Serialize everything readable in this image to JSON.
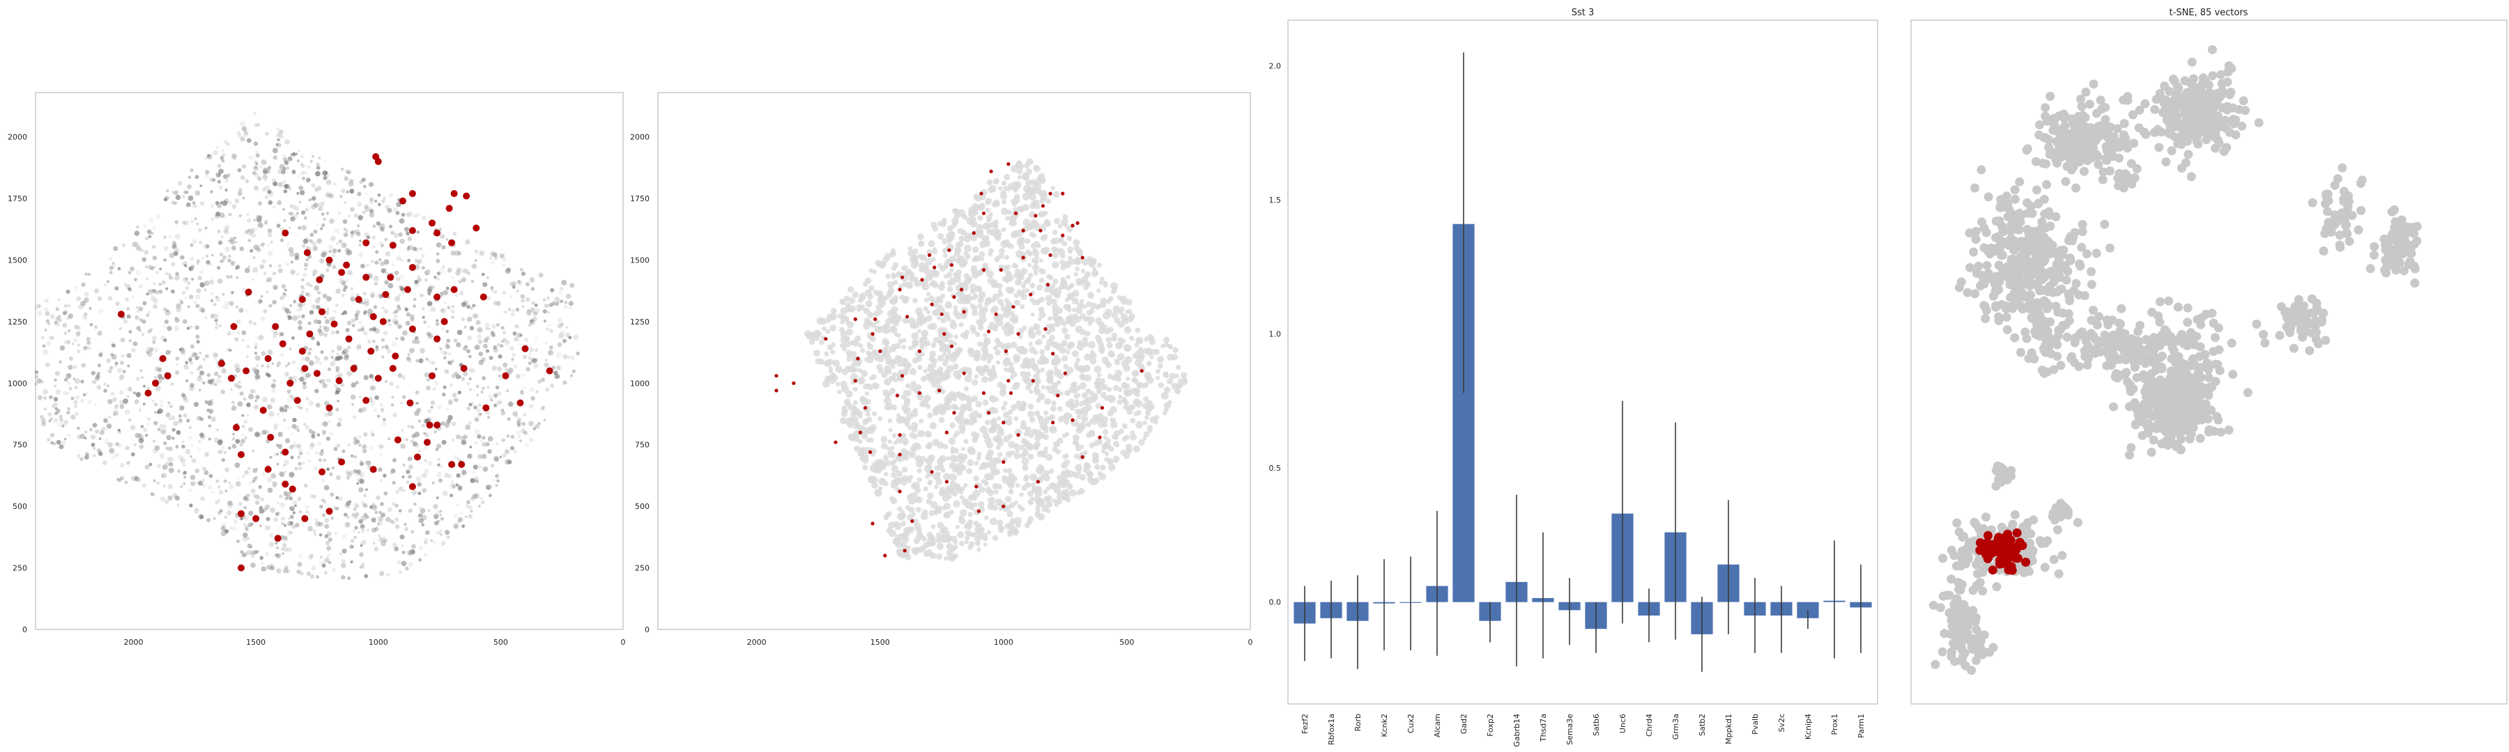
{
  "chart_data": [
    {
      "type": "scatter",
      "title": "",
      "xlabel": "",
      "ylabel": "",
      "xlim": [
        2400,
        0
      ],
      "ylim": [
        2180,
        0
      ],
      "xticks": [
        "2000",
        "1500",
        "1000",
        "500",
        "0"
      ],
      "yticks": [
        "0",
        "250",
        "500",
        "750",
        "1000",
        "1250",
        "1500",
        "1750",
        "2000"
      ],
      "grid": false,
      "background_color": "#b0b0b0",
      "highlight_color": "#b40000",
      "highlight_points": [
        [
          1560,
          250
        ],
        [
          1410,
          370
        ],
        [
          1500,
          450
        ],
        [
          1560,
          470
        ],
        [
          1300,
          450
        ],
        [
          1200,
          480
        ],
        [
          1380,
          590
        ],
        [
          1350,
          570
        ],
        [
          1450,
          650
        ],
        [
          1230,
          640
        ],
        [
          1150,
          680
        ],
        [
          1020,
          650
        ],
        [
          1380,
          720
        ],
        [
          860,
          580
        ],
        [
          840,
          700
        ],
        [
          700,
          670
        ],
        [
          660,
          670
        ],
        [
          1560,
          710
        ],
        [
          1580,
          820
        ],
        [
          1440,
          780
        ],
        [
          920,
          770
        ],
        [
          800,
          760
        ],
        [
          790,
          830
        ],
        [
          760,
          830
        ],
        [
          1470,
          890
        ],
        [
          1330,
          930
        ],
        [
          1200,
          900
        ],
        [
          1050,
          930
        ],
        [
          870,
          920
        ],
        [
          560,
          900
        ],
        [
          420,
          920
        ],
        [
          1940,
          960
        ],
        [
          1910,
          1000
        ],
        [
          1860,
          1030
        ],
        [
          1600,
          1020
        ],
        [
          1540,
          1050
        ],
        [
          1360,
          1000
        ],
        [
          1300,
          1060
        ],
        [
          1250,
          1040
        ],
        [
          1160,
          1010
        ],
        [
          1100,
          1060
        ],
        [
          1000,
          1020
        ],
        [
          940,
          1060
        ],
        [
          780,
          1030
        ],
        [
          650,
          1060
        ],
        [
          480,
          1030
        ],
        [
          300,
          1050
        ],
        [
          1880,
          1100
        ],
        [
          1640,
          1080
        ],
        [
          1450,
          1100
        ],
        [
          1390,
          1160
        ],
        [
          1310,
          1130
        ],
        [
          1030,
          1130
        ],
        [
          930,
          1110
        ],
        [
          760,
          1180
        ],
        [
          400,
          1140
        ],
        [
          1590,
          1230
        ],
        [
          1420,
          1230
        ],
        [
          1280,
          1200
        ],
        [
          1180,
          1240
        ],
        [
          1120,
          1180
        ],
        [
          1020,
          1270
        ],
        [
          980,
          1250
        ],
        [
          860,
          1220
        ],
        [
          730,
          1250
        ],
        [
          1230,
          1290
        ],
        [
          1080,
          1340
        ],
        [
          970,
          1360
        ],
        [
          880,
          1380
        ],
        [
          760,
          1350
        ],
        [
          690,
          1380
        ],
        [
          570,
          1350
        ],
        [
          1530,
          1370
        ],
        [
          1310,
          1340
        ],
        [
          1240,
          1420
        ],
        [
          1150,
          1450
        ],
        [
          1050,
          1430
        ],
        [
          950,
          1430
        ],
        [
          860,
          1470
        ],
        [
          1200,
          1500
        ],
        [
          1130,
          1480
        ],
        [
          1290,
          1530
        ],
        [
          1380,
          1610
        ],
        [
          1050,
          1570
        ],
        [
          940,
          1560
        ],
        [
          860,
          1620
        ],
        [
          760,
          1610
        ],
        [
          700,
          1570
        ],
        [
          600,
          1630
        ],
        [
          780,
          1650
        ],
        [
          710,
          1710
        ],
        [
          900,
          1740
        ],
        [
          860,
          1770
        ],
        [
          690,
          1770
        ],
        [
          640,
          1760
        ],
        [
          1000,
          1900
        ],
        [
          1010,
          1920
        ],
        [
          2050,
          1280
        ]
      ]
    },
    {
      "type": "scatter",
      "title": "",
      "xlabel": "",
      "ylabel": "",
      "xlim": [
        2400,
        0
      ],
      "ylim": [
        2180,
        0
      ],
      "xticks": [
        "2000",
        "1500",
        "1000",
        "500",
        "0"
      ],
      "yticks": [
        "0",
        "250",
        "500",
        "750",
        "1000",
        "1250",
        "1500",
        "1750",
        "2000"
      ],
      "grid": false,
      "background_color": "#d8d8d8",
      "highlight_color": "#b40000",
      "highlight_points": [
        [
          1480,
          300
        ],
        [
          1400,
          320
        ],
        [
          1530,
          430
        ],
        [
          1370,
          440
        ],
        [
          1100,
          480
        ],
        [
          1000,
          500
        ],
        [
          1420,
          560
        ],
        [
          1230,
          600
        ],
        [
          1110,
          580
        ],
        [
          860,
          600
        ],
        [
          1290,
          640
        ],
        [
          1000,
          680
        ],
        [
          1420,
          710
        ],
        [
          1540,
          720
        ],
        [
          680,
          700
        ],
        [
          1680,
          760
        ],
        [
          1580,
          800
        ],
        [
          1420,
          790
        ],
        [
          1230,
          800
        ],
        [
          940,
          790
        ],
        [
          610,
          780
        ],
        [
          1000,
          840
        ],
        [
          800,
          840
        ],
        [
          720,
          850
        ],
        [
          1560,
          900
        ],
        [
          1200,
          880
        ],
        [
          1060,
          880
        ],
        [
          600,
          900
        ],
        [
          1430,
          950
        ],
        [
          1340,
          960
        ],
        [
          1260,
          970
        ],
        [
          1080,
          960
        ],
        [
          970,
          960
        ],
        [
          780,
          950
        ],
        [
          1920,
          970
        ],
        [
          1850,
          1000
        ],
        [
          1600,
          1010
        ],
        [
          1410,
          1030
        ],
        [
          1160,
          1040
        ],
        [
          980,
          1010
        ],
        [
          880,
          1010
        ],
        [
          750,
          1040
        ],
        [
          440,
          1050
        ],
        [
          1920,
          1030
        ],
        [
          1590,
          1100
        ],
        [
          1500,
          1130
        ],
        [
          1340,
          1130
        ],
        [
          1210,
          1150
        ],
        [
          990,
          1130
        ],
        [
          800,
          1120
        ],
        [
          1720,
          1180
        ],
        [
          1530,
          1200
        ],
        [
          1240,
          1200
        ],
        [
          1060,
          1210
        ],
        [
          940,
          1200
        ],
        [
          830,
          1220
        ],
        [
          1600,
          1260
        ],
        [
          1520,
          1260
        ],
        [
          1390,
          1270
        ],
        [
          1250,
          1280
        ],
        [
          1160,
          1290
        ],
        [
          1030,
          1280
        ],
        [
          960,
          1310
        ],
        [
          1290,
          1320
        ],
        [
          1200,
          1350
        ],
        [
          1170,
          1380
        ],
        [
          890,
          1360
        ],
        [
          820,
          1400
        ],
        [
          1420,
          1380
        ],
        [
          1410,
          1430
        ],
        [
          1330,
          1420
        ],
        [
          1280,
          1470
        ],
        [
          1210,
          1480
        ],
        [
          1080,
          1460
        ],
        [
          1010,
          1460
        ],
        [
          1300,
          1520
        ],
        [
          1220,
          1540
        ],
        [
          920,
          1510
        ],
        [
          810,
          1520
        ],
        [
          680,
          1510
        ],
        [
          1120,
          1610
        ],
        [
          920,
          1620
        ],
        [
          850,
          1620
        ],
        [
          760,
          1600
        ],
        [
          720,
          1640
        ],
        [
          700,
          1650
        ],
        [
          1080,
          1690
        ],
        [
          950,
          1690
        ],
        [
          870,
          1680
        ],
        [
          840,
          1720
        ],
        [
          1090,
          1770
        ],
        [
          810,
          1770
        ],
        [
          760,
          1770
        ],
        [
          980,
          1890
        ],
        [
          1050,
          1860
        ]
      ]
    },
    {
      "type": "bar",
      "title": "Sst 3",
      "xlabel": "",
      "ylabel": "",
      "ylim": [
        -0.38,
        2.17
      ],
      "yticks": [
        "0.0",
        "0.5",
        "1.0",
        "1.5",
        "2.0"
      ],
      "grid": false,
      "bar_color": "#4c72b0",
      "categories": [
        "Fezf2",
        "Rbfox1a",
        "Rorb",
        "Kcnk2",
        "Cux2",
        "Alcam",
        "Gad2",
        "Foxp2",
        "Gabrb14",
        "Thsd7a",
        "Sema3e",
        "Satb6",
        "Unc6",
        "Chrd4",
        "Grm3a",
        "Satb2",
        "Mppkd1",
        "Pvalb",
        "Sv2c",
        "Kcnip4",
        "Prox1",
        "Parm1"
      ],
      "values": [
        -0.08,
        -0.06,
        -0.07,
        -0.005,
        -0.002,
        0.06,
        1.41,
        -0.07,
        0.075,
        0.015,
        -0.03,
        -0.1,
        0.33,
        -0.05,
        0.26,
        -0.12,
        0.14,
        -0.05,
        -0.05,
        -0.06,
        0.005,
        -0.02
      ],
      "error_low": [
        -0.22,
        -0.21,
        -0.25,
        -0.18,
        -0.18,
        -0.2,
        0.78,
        -0.15,
        -0.24,
        -0.21,
        -0.16,
        -0.19,
        -0.08,
        -0.15,
        -0.14,
        -0.26,
        -0.12,
        -0.19,
        -0.19,
        -0.1,
        -0.21,
        -0.19
      ],
      "error_high": [
        0.06,
        0.08,
        0.1,
        0.16,
        0.17,
        0.34,
        2.05,
        0.0,
        0.4,
        0.26,
        0.09,
        0.0,
        0.75,
        0.05,
        0.67,
        0.02,
        0.38,
        0.09,
        0.06,
        -0.03,
        0.23,
        0.14
      ]
    },
    {
      "type": "scatter",
      "title": "t-SNE, 85 vectors",
      "xlabel": "",
      "ylabel": "",
      "grid": false,
      "background_color": "#c8c8c8",
      "highlight_color": "#b40000",
      "clusters": [
        {
          "center": [
            0.47,
            0.135
          ],
          "spread": [
            0.075,
            0.055
          ],
          "n": 260
        },
        {
          "center": [
            0.285,
            0.175
          ],
          "spread": [
            0.07,
            0.05
          ],
          "n": 200
        },
        {
          "center": [
            0.36,
            0.23
          ],
          "spread": [
            0.015,
            0.012
          ],
          "n": 15
        },
        {
          "center": [
            0.195,
            0.355
          ],
          "spread": [
            0.08,
            0.09
          ],
          "n": 340
        },
        {
          "center": [
            0.38,
            0.475
          ],
          "spread": [
            0.155,
            0.045
          ],
          "n": 240
        },
        {
          "center": [
            0.44,
            0.565
          ],
          "spread": [
            0.06,
            0.05
          ],
          "n": 320
        },
        {
          "center": [
            0.66,
            0.44
          ],
          "spread": [
            0.03,
            0.03
          ],
          "n": 60
        },
        {
          "center": [
            0.82,
            0.33
          ],
          "spread": [
            0.03,
            0.04
          ],
          "n": 80
        },
        {
          "center": [
            0.72,
            0.28
          ],
          "spread": [
            0.035,
            0.045
          ],
          "n": 50
        },
        {
          "center": [
            0.15,
            0.665
          ],
          "spread": [
            0.012,
            0.015
          ],
          "n": 20
        },
        {
          "center": [
            0.15,
            0.775
          ],
          "spread": [
            0.07,
            0.035
          ],
          "n": 160
        },
        {
          "center": [
            0.25,
            0.72
          ],
          "spread": [
            0.02,
            0.015
          ],
          "n": 25
        },
        {
          "center": [
            0.09,
            0.885
          ],
          "spread": [
            0.035,
            0.06
          ],
          "n": 110
        }
      ],
      "highlight_center": [
        0.155,
        0.775
      ],
      "highlight_count": 85
    }
  ]
}
